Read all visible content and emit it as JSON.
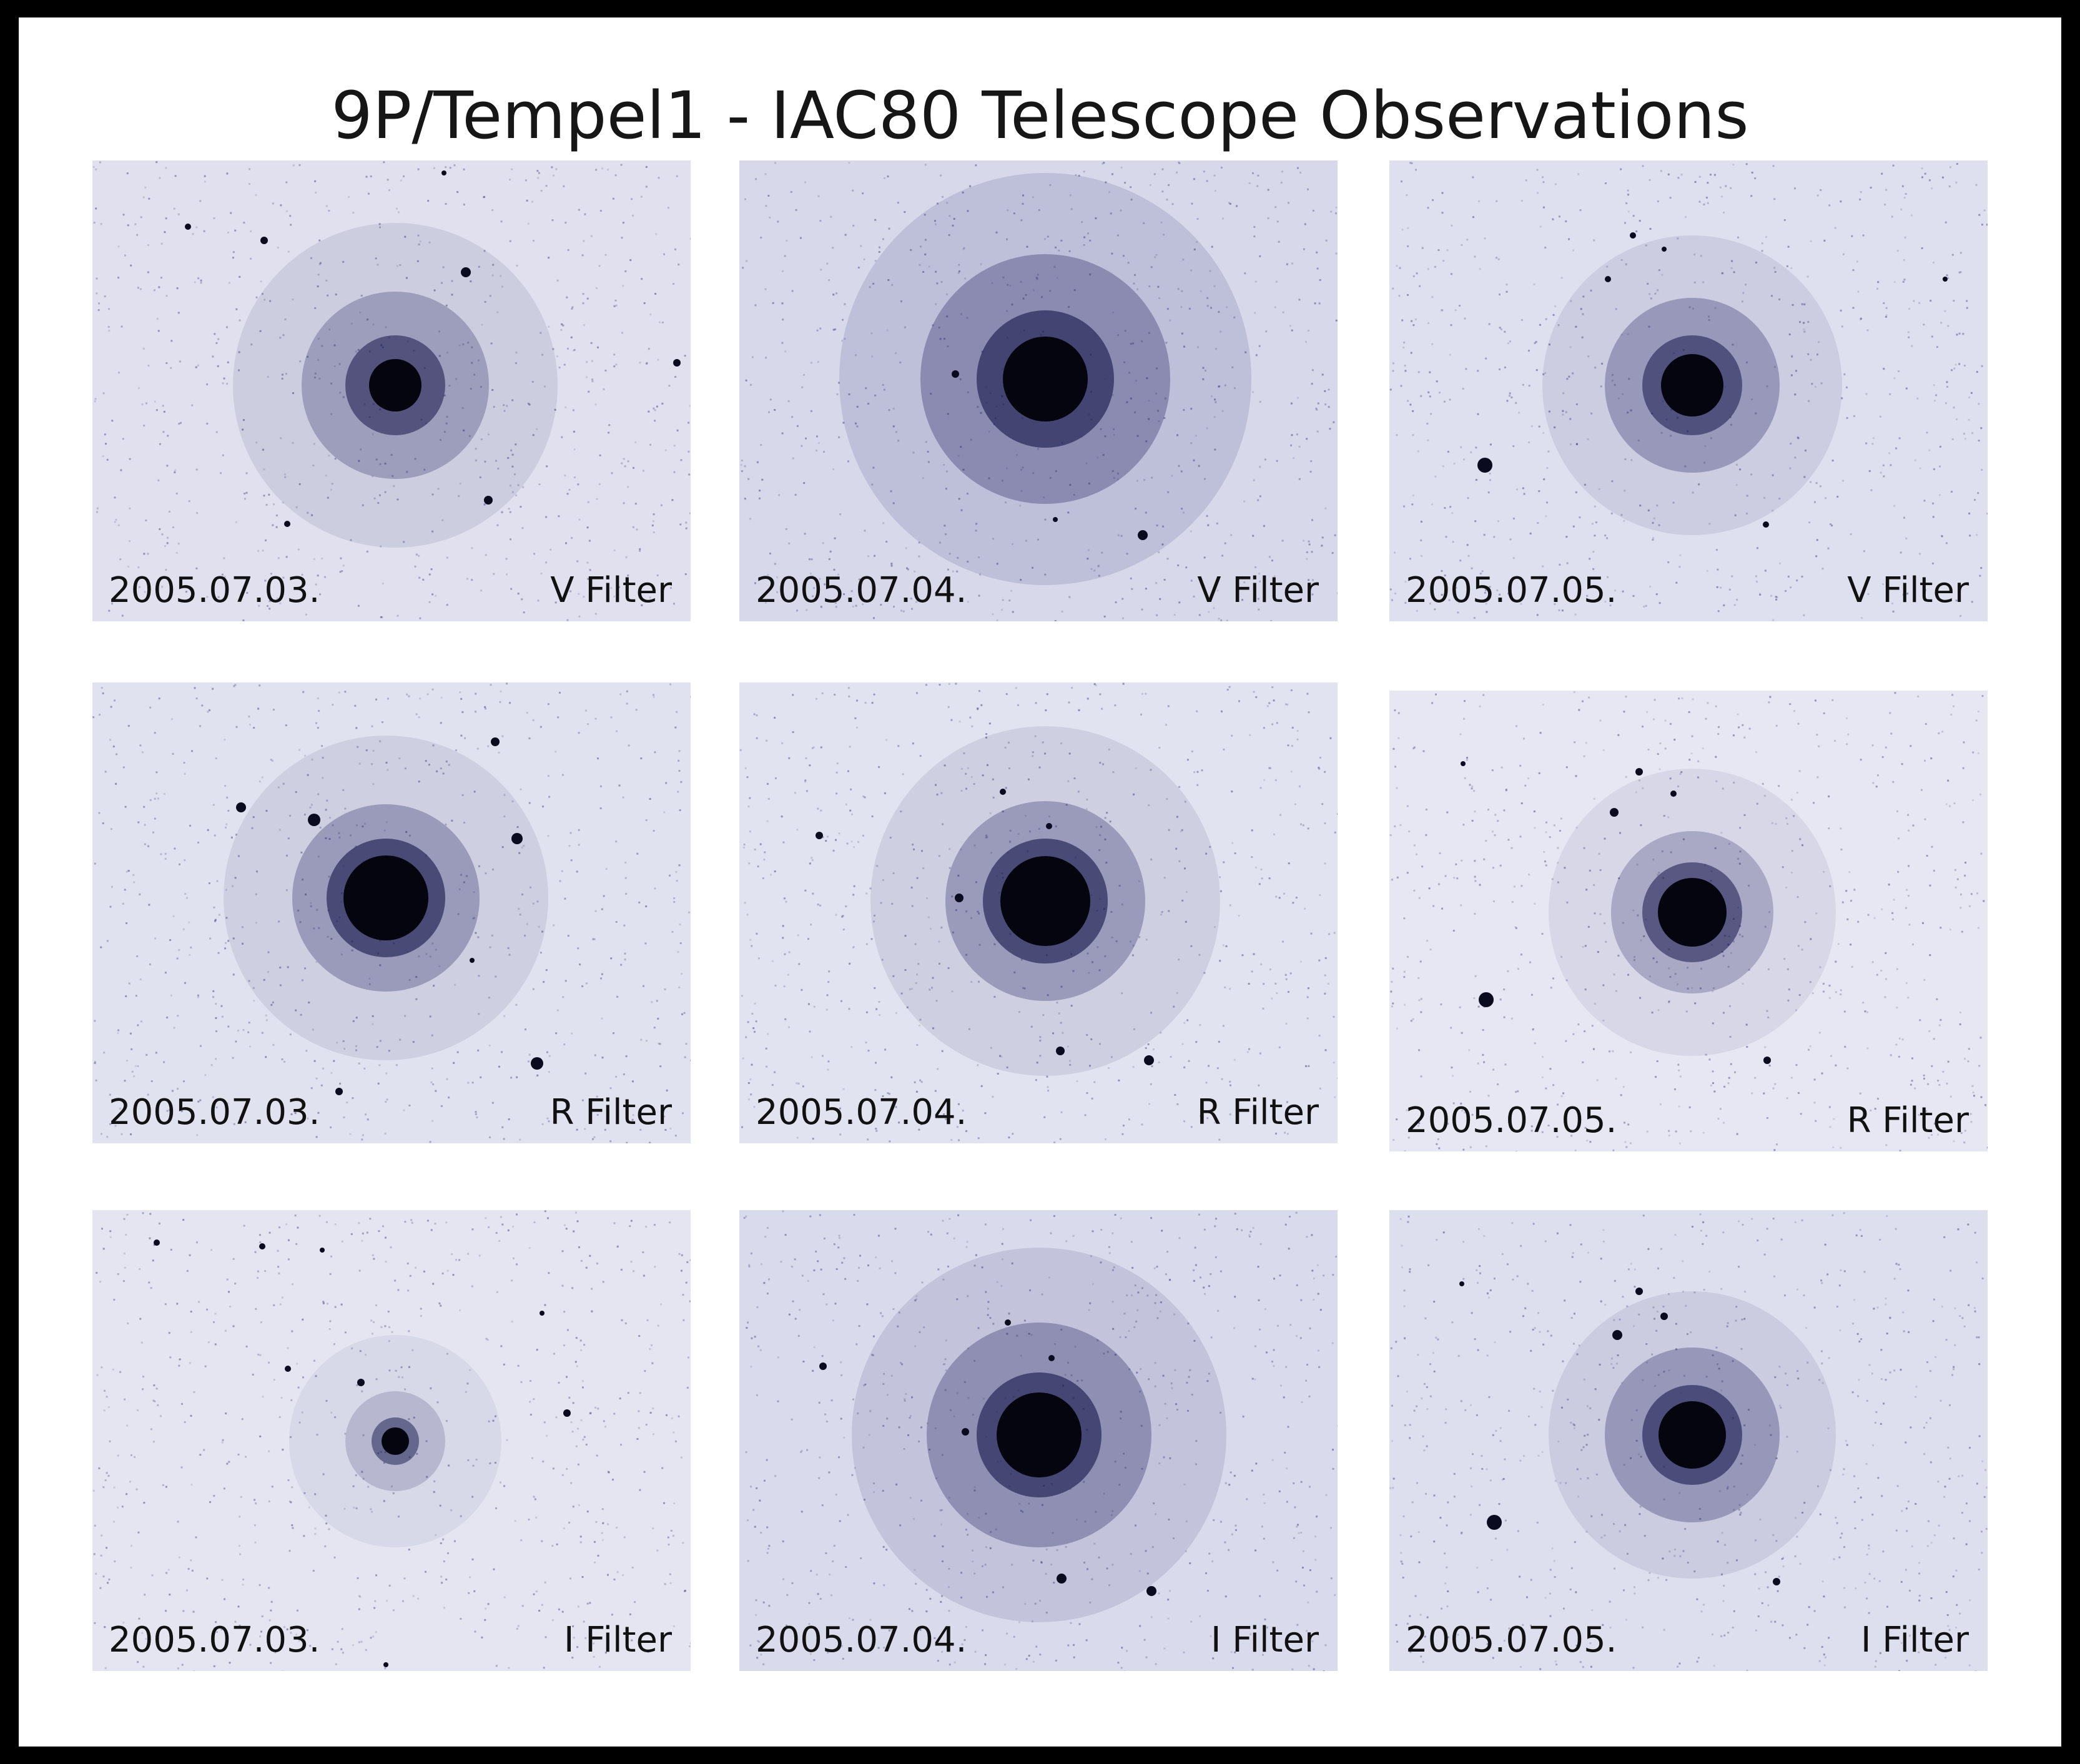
{
  "title": "9P/Tempel1 - IAC80 Telescope Observations",
  "colors": {
    "page_border": "#000000",
    "page_background": "#ffffff",
    "sky_background": "#dedfee",
    "coma_color": "#1e1e5a",
    "nucleus_color": "#050510",
    "caption_text": "#111111"
  },
  "rows": [
    {
      "filter": "V Filter",
      "panels": [
        {
          "date": "2005.07.03.",
          "filter_label": "V Filter"
        },
        {
          "date": "2005.07.04.",
          "filter_label": "V Filter"
        },
        {
          "date": "2005.07.05.",
          "filter_label": "V Filter"
        }
      ]
    },
    {
      "filter": "R Filter",
      "panels": [
        {
          "date": "2005.07.03.",
          "filter_label": "R Filter"
        },
        {
          "date": "2005.07.04.",
          "filter_label": "R Filter"
        },
        {
          "date": "2005.07.05.",
          "filter_label": "R Filter"
        }
      ]
    },
    {
      "filter": "I Filter",
      "panels": [
        {
          "date": "2005.07.03.",
          "filter_label": "I Filter"
        },
        {
          "date": "2005.07.04.",
          "filter_label": "I Filter"
        },
        {
          "date": "2005.07.05.",
          "filter_label": "I Filter"
        }
      ]
    }
  ]
}
